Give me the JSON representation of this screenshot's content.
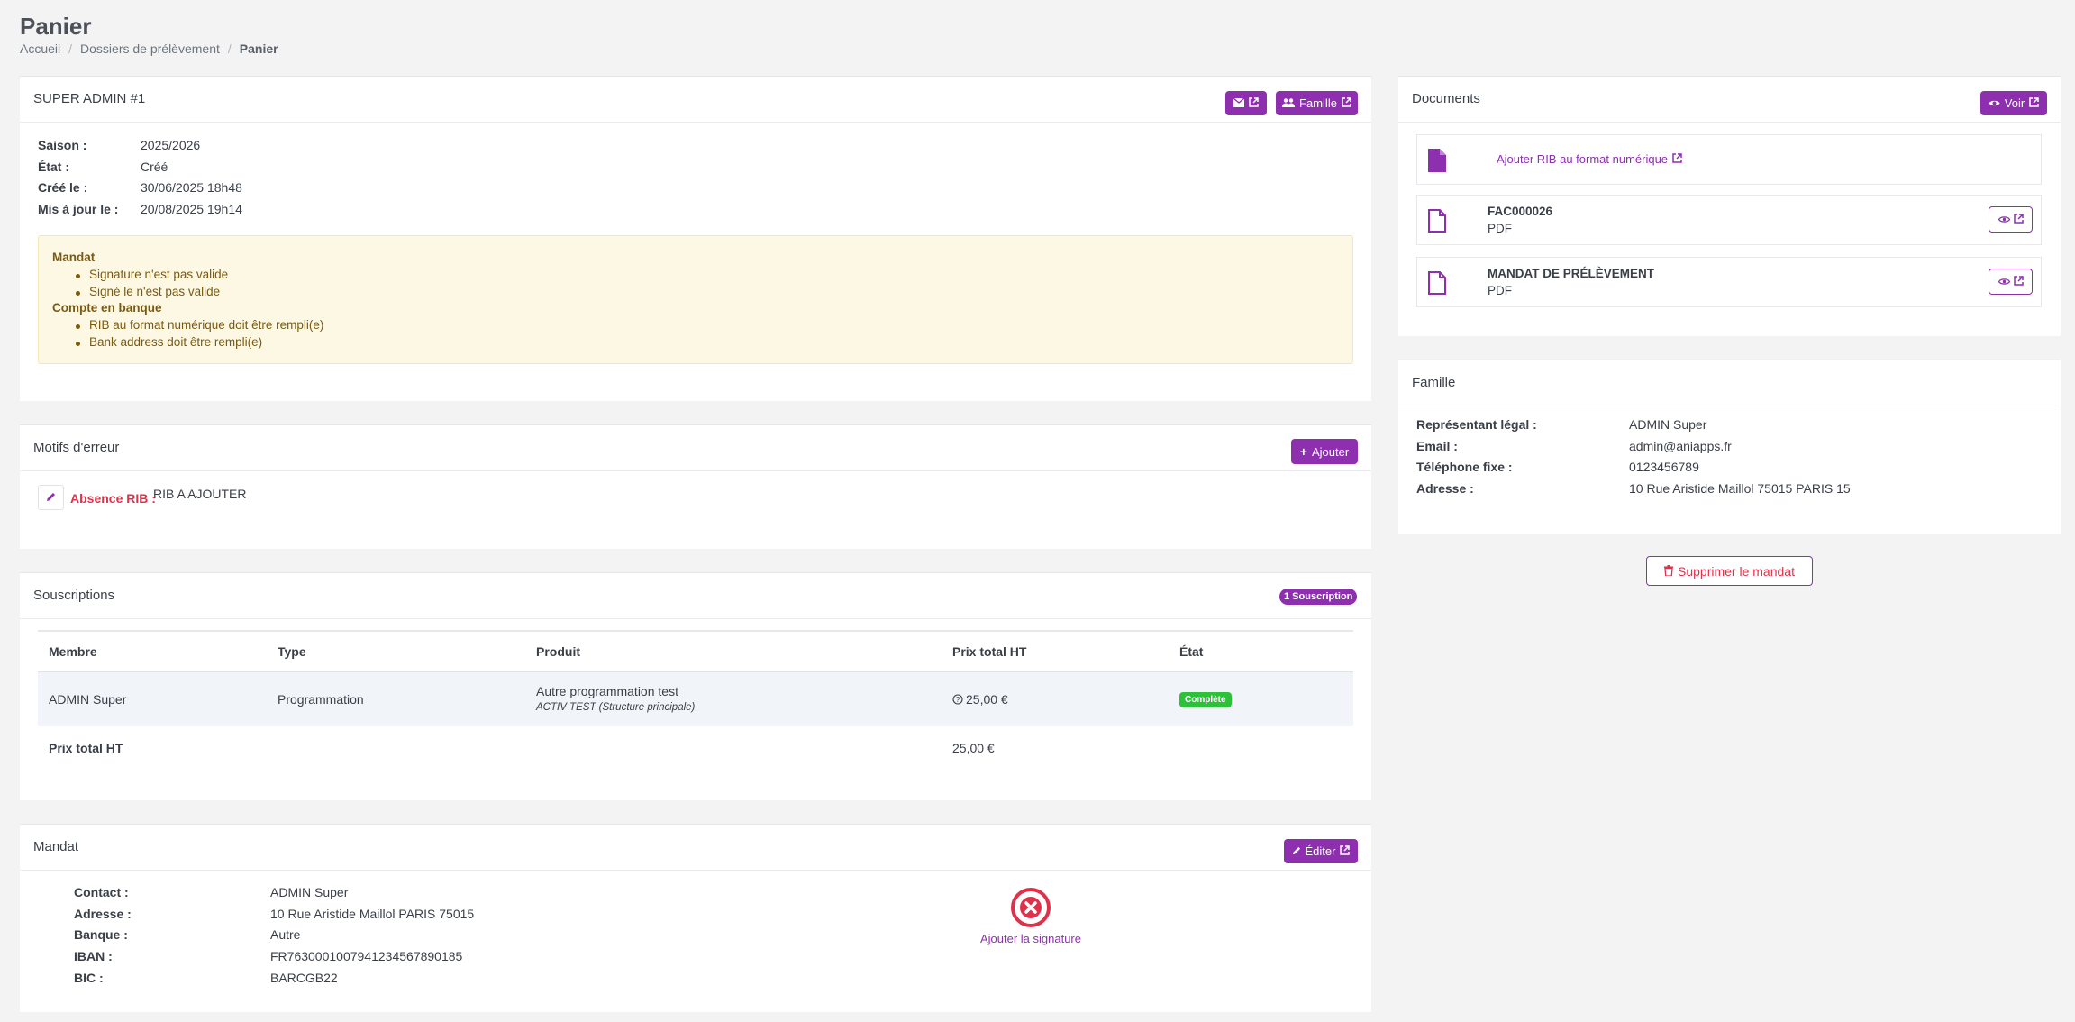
{
  "page": {
    "title": "Panier"
  },
  "breadcrumb": {
    "items": [
      "Accueil",
      "Dossiers de prélèvement",
      "Panier"
    ]
  },
  "main_card": {
    "title": "SUPER ADMIN #1",
    "family_button": "Famille",
    "fields": [
      {
        "label": "Saison :",
        "value": "2025/2026"
      },
      {
        "label": "État :",
        "value": "Créé"
      },
      {
        "label": "Créé le :",
        "value": "30/06/2025 18h48"
      },
      {
        "label": "Mis à jour le :",
        "value": "20/08/2025 19h14"
      }
    ],
    "alert": {
      "section1": "Mandat",
      "items1": [
        "Signature n'est pas valide",
        "Signé le n'est pas valide"
      ],
      "section2": "Compte en banque",
      "items2": [
        "RIB au format numérique doit être rempli(e)",
        "Bank address doit être rempli(e)"
      ]
    }
  },
  "errors_card": {
    "title": "Motifs d'erreur",
    "add_button": "Ajouter",
    "reason_label": "Absence RIB :",
    "reason_value": "RIB A AJOUTER"
  },
  "subs_card": {
    "title": "Souscriptions",
    "badge": "1 Souscription",
    "headers": [
      "Membre",
      "Type",
      "Produit",
      "Prix total HT",
      "État"
    ],
    "row": {
      "member": "ADMIN Super",
      "type": "Programmation",
      "product": "Autre programmation test",
      "product_sub": "ACTIV TEST (Structure principale)",
      "price": "25,00 €",
      "status": "Complète"
    },
    "total_label": "Prix total HT",
    "total_value": "25,00 €"
  },
  "mandate_card": {
    "title": "Mandat",
    "edit_button": "Éditer",
    "fields": [
      {
        "label": "Contact :",
        "value": "ADMIN Super"
      },
      {
        "label": "Adresse :",
        "value": "10 Rue Aristide Maillol PARIS 75015"
      },
      {
        "label": "Banque :",
        "value": "Autre"
      },
      {
        "label": "IBAN :",
        "value": "FR7630001007941234567890185"
      },
      {
        "label": "BIC :",
        "value": "BARCGB22"
      }
    ],
    "signature_link": "Ajouter la signature"
  },
  "documents_card": {
    "title": "Documents",
    "view_button": "Voir",
    "add_rib_link": "Ajouter RIB au format numérique",
    "docs": [
      {
        "name": "FAC000026",
        "type": "PDF"
      },
      {
        "name": "MANDAT DE PRÉLÈVEMENT",
        "type": "PDF"
      }
    ]
  },
  "family_card": {
    "title": "Famille",
    "fields": [
      {
        "label": "Représentant légal :",
        "value": "ADMIN Super"
      },
      {
        "label": "Email :",
        "value": "admin@aniapps.fr"
      },
      {
        "label": "Téléphone fixe :",
        "value": "0123456789"
      },
      {
        "label": "Adresse :",
        "value": "10 Rue Aristide Maillol 75015 PARIS 15"
      }
    ]
  },
  "delete_button": "Supprimer le mandat",
  "colors": {
    "accent": "#8e2fb0",
    "danger": "#e0314b",
    "success": "#2bc23a",
    "warning_bg": "#fcf8e3"
  }
}
